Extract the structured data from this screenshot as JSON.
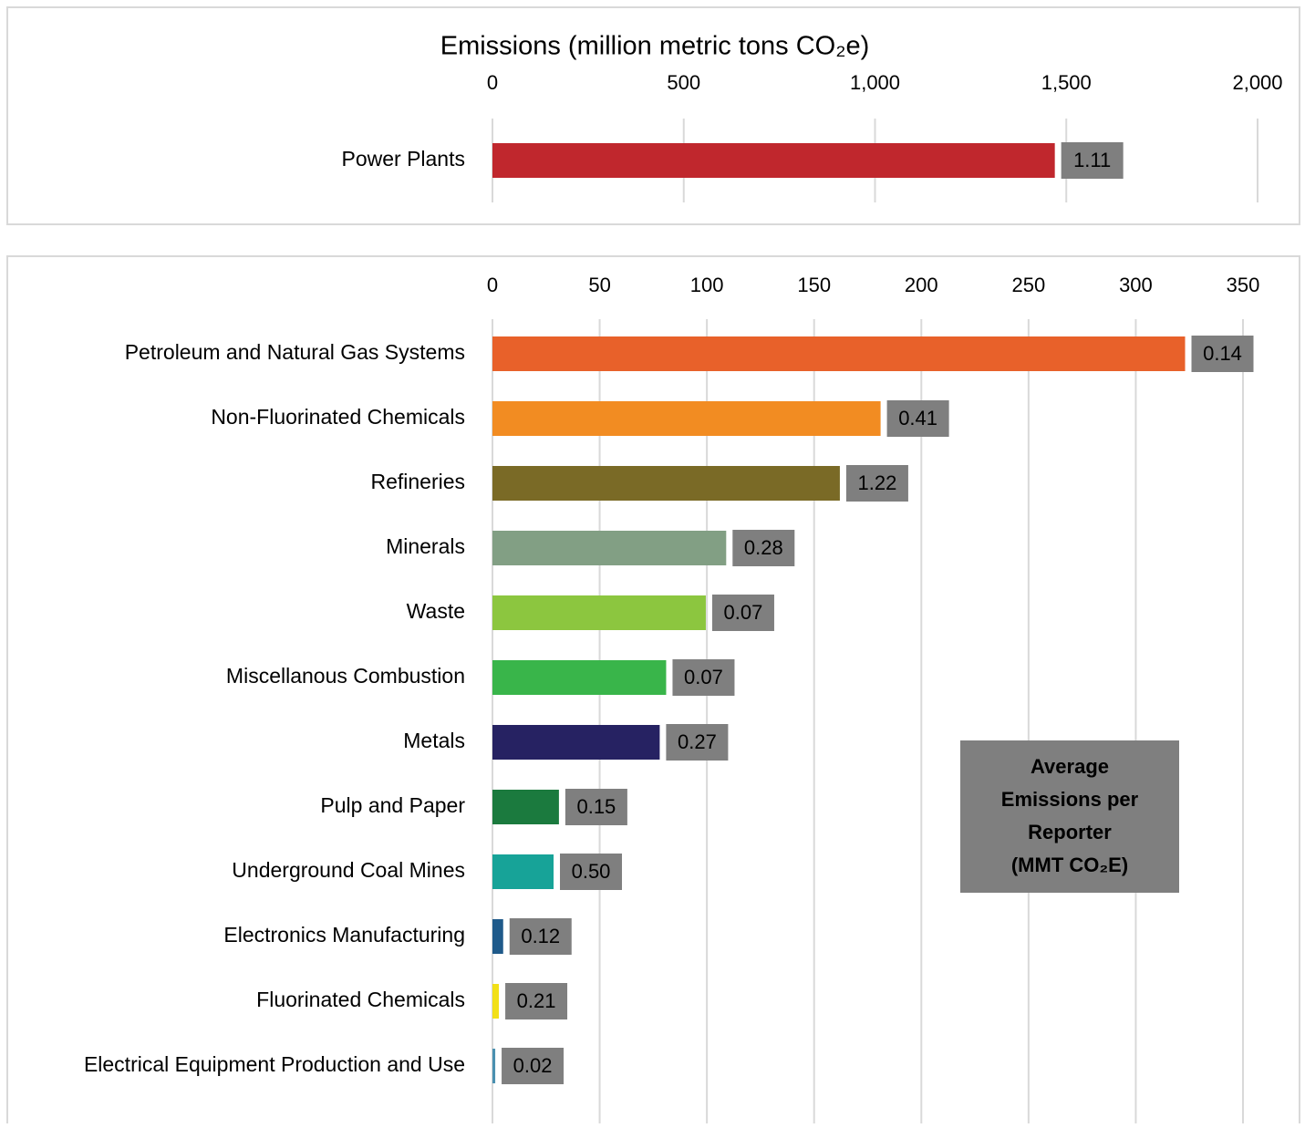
{
  "chart_data": [
    {
      "type": "hbar",
      "title": "Emissions (million metric tons CO₂e)",
      "categories": [
        "Power Plants"
      ],
      "values": [
        1470
      ],
      "colors": [
        "#c0272d"
      ],
      "avg": {
        "values": [
          1.11
        ],
        "value_labels": [
          "1.11"
        ]
      },
      "xlim": [
        0,
        2000
      ],
      "xticks": [
        0,
        500,
        {
          "value": 1000,
          "label": "1,000"
        },
        {
          "value": 1500,
          "label": "1,500"
        },
        {
          "value": 2000,
          "label": "2,000"
        }
      ],
      "grid": true
    },
    {
      "type": "hbar",
      "categories": [
        "Petroleum and Natural Gas Systems",
        "Non-Fluorinated Chemicals",
        "Refineries",
        "Minerals",
        "Waste",
        "Miscellanous Combustion",
        "Metals",
        "Pulp and Paper",
        "Underground Coal Mines",
        "Electronics Manufacturing",
        "Fluorinated Chemicals",
        "Electrical Equipment Production and Use"
      ],
      "values": [
        323,
        181,
        162,
        109,
        99.5,
        81,
        78,
        31,
        28.5,
        5,
        3,
        1.3
      ],
      "colors": [
        "#e8612a",
        "#f28c22",
        "#7a6a26",
        "#829f84",
        "#8cc63f",
        "#39b54a",
        "#262262",
        "#1b7a3e",
        "#17a398",
        "#1f5a8a",
        "#f2e018",
        "#4a90b0"
      ],
      "avg": {
        "values": [
          0.14,
          0.41,
          1.22,
          0.28,
          0.07,
          0.07,
          0.27,
          0.15,
          0.5,
          0.12,
          0.21,
          0.02
        ],
        "value_labels": [
          "0.14",
          "0.41",
          "1.22",
          "0.28",
          "0.07",
          "0.07",
          "0.27",
          "0.15",
          "0.50",
          "0.12",
          "0.21",
          "0.02"
        ]
      },
      "annotation": [
        "Average",
        "Emissions per",
        "Reporter",
        "(MMT CO₂E)"
      ],
      "xlim": [
        0,
        350
      ],
      "xticks": [
        0,
        50,
        100,
        150,
        200,
        250,
        300,
        350
      ],
      "grid": true
    }
  ]
}
